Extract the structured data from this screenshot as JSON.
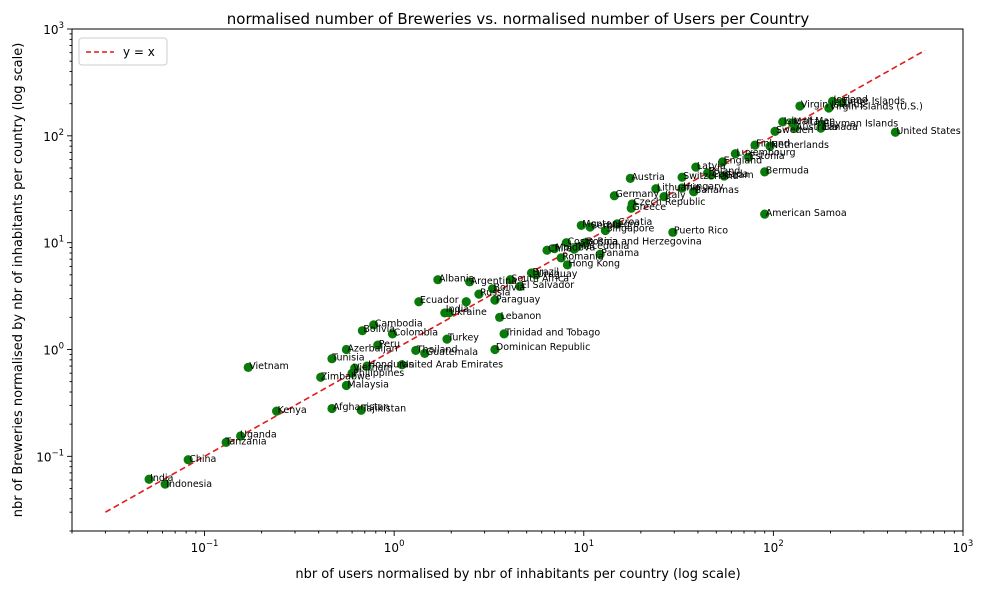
{
  "chart_data": {
    "type": "scatter",
    "title": "normalised number of Breweries vs. normalised number of Users per Country",
    "xlabel": "nbr of users normalised by nbr of inhabitants per country (log scale)",
    "ylabel": "nbr of Breweries normalised by nbr of inhabitants per country (log scale)",
    "x_scale": "log",
    "y_scale": "log",
    "xlim": [
      0.02,
      1000
    ],
    "ylim": [
      0.02,
      1000
    ],
    "x_ticks": [
      {
        "value": 0.1,
        "base": "10",
        "exp": "−1"
      },
      {
        "value": 1,
        "base": "10",
        "exp": "0"
      },
      {
        "value": 10,
        "base": "10",
        "exp": "1"
      },
      {
        "value": 100,
        "base": "10",
        "exp": "2"
      },
      {
        "value": 1000,
        "base": "10",
        "exp": "3"
      }
    ],
    "y_ticks": [
      {
        "value": 0.1,
        "base": "10",
        "exp": "−1"
      },
      {
        "value": 1,
        "base": "10",
        "exp": "0"
      },
      {
        "value": 10,
        "base": "10",
        "exp": "1"
      },
      {
        "value": 100,
        "base": "10",
        "exp": "2"
      },
      {
        "value": 1000,
        "base": "10",
        "exp": "3"
      }
    ],
    "grid": false,
    "legend": {
      "placement": "top-left",
      "entries": [
        "y = x"
      ]
    },
    "reference_line": {
      "name": "y = x",
      "x": [
        0.03,
        630
      ],
      "y": [
        0.03,
        630
      ],
      "color": "#e01b1b",
      "style": "dashed"
    },
    "point_color": "#0a7a0a",
    "points": [
      {
        "label": "India",
        "x": 0.051,
        "y": 0.061
      },
      {
        "label": "Indonesia",
        "x": 0.062,
        "y": 0.055
      },
      {
        "label": "China",
        "x": 0.082,
        "y": 0.093
      },
      {
        "label": "Tanzania",
        "x": 0.13,
        "y": 0.135
      },
      {
        "label": "Uganda",
        "x": 0.155,
        "y": 0.155
      },
      {
        "label": "Vietnam",
        "x": 0.17,
        "y": 0.68
      },
      {
        "label": "Kenya",
        "x": 0.24,
        "y": 0.265
      },
      {
        "label": "Zimbabwe",
        "x": 0.41,
        "y": 0.55
      },
      {
        "label": "Tunisia",
        "x": 0.47,
        "y": 0.82
      },
      {
        "label": "Afghanistan",
        "x": 0.47,
        "y": 0.28
      },
      {
        "label": "Malaysia",
        "x": 0.56,
        "y": 0.46
      },
      {
        "label": "Azerbaijan",
        "x": 0.56,
        "y": 1.0
      },
      {
        "label": "Philippines",
        "x": 0.6,
        "y": 0.6
      },
      {
        "label": "Vietnam",
        "x": 0.62,
        "y": 0.67
      },
      {
        "label": "Tajikistan",
        "x": 0.67,
        "y": 0.27
      },
      {
        "label": "Bolivia",
        "x": 0.68,
        "y": 1.5
      },
      {
        "label": "Honduras",
        "x": 0.72,
        "y": 0.7
      },
      {
        "label": "Cambodia",
        "x": 0.78,
        "y": 1.7
      },
      {
        "label": "Peru",
        "x": 0.82,
        "y": 1.1
      },
      {
        "label": "Colombia",
        "x": 0.98,
        "y": 1.4
      },
      {
        "label": "United Arab Emirates",
        "x": 1.1,
        "y": 0.72
      },
      {
        "label": "Thailand",
        "x": 1.3,
        "y": 0.98
      },
      {
        "label": "Ecuador",
        "x": 1.35,
        "y": 2.8
      },
      {
        "label": "Guatemala",
        "x": 1.45,
        "y": 0.92
      },
      {
        "label": "Albania",
        "x": 1.7,
        "y": 4.5
      },
      {
        "label": "India",
        "x": 1.85,
        "y": 2.2
      },
      {
        "label": "Ukraine",
        "x": 1.95,
        "y": 2.2
      },
      {
        "label": "Turkey",
        "x": 1.9,
        "y": 1.25
      },
      {
        "label": "El Salvador",
        "x": 2.4,
        "y": 2.8
      },
      {
        "label": "Argentina",
        "x": 2.5,
        "y": 4.3
      },
      {
        "label": "Russia",
        "x": 2.8,
        "y": 3.3
      },
      {
        "label": "Bolivia",
        "x": 3.3,
        "y": 3.7
      },
      {
        "label": "Paraguay",
        "x": 3.4,
        "y": 2.9
      },
      {
        "label": "Dominican Republic",
        "x": 3.4,
        "y": 1.0
      },
      {
        "label": "Lebanon",
        "x": 3.6,
        "y": 2.0
      },
      {
        "label": "Trinidad and Tobago",
        "x": 3.8,
        "y": 1.4
      },
      {
        "label": "South Africa",
        "x": 4.1,
        "y": 4.5
      },
      {
        "label": "El Salvador",
        "x": 4.6,
        "y": 3.9
      },
      {
        "label": "Brazil",
        "x": 5.3,
        "y": 5.2
      },
      {
        "label": "Uruguay",
        "x": 5.6,
        "y": 5.0
      },
      {
        "label": "Chile",
        "x": 6.4,
        "y": 8.5
      },
      {
        "label": "Romania",
        "x": 7.6,
        "y": 7.2
      },
      {
        "label": "Moldova",
        "x": 7.0,
        "y": 8.8
      },
      {
        "label": "Costa Rica",
        "x": 8.1,
        "y": 10.0
      },
      {
        "label": "Hong Kong",
        "x": 8.2,
        "y": 6.2
      },
      {
        "label": "Mexico",
        "x": 8.9,
        "y": 8.7
      },
      {
        "label": "Macedonia",
        "x": 9.2,
        "y": 9.1
      },
      {
        "label": "Bosnia and Herzegovina",
        "x": 10.2,
        "y": 10.0
      },
      {
        "label": "Montenegro",
        "x": 9.7,
        "y": 14.5
      },
      {
        "label": "Serbia",
        "x": 10.8,
        "y": 14.0
      },
      {
        "label": "Panama",
        "x": 12.2,
        "y": 7.8
      },
      {
        "label": "Singapore",
        "x": 13.0,
        "y": 13.0
      },
      {
        "label": "Croatia",
        "x": 15.0,
        "y": 15.0
      },
      {
        "label": "Greece",
        "x": 17.8,
        "y": 21.0
      },
      {
        "label": "Czech Republic",
        "x": 18.0,
        "y": 23.0
      },
      {
        "label": "Puerto Rico",
        "x": 29.5,
        "y": 12.5
      },
      {
        "label": "Germany",
        "x": 14.5,
        "y": 27.5
      },
      {
        "label": "Austria",
        "x": 17.6,
        "y": 40.0
      },
      {
        "label": "Lithuania",
        "x": 24.0,
        "y": 32.0
      },
      {
        "label": "Italy",
        "x": 26.5,
        "y": 27.0
      },
      {
        "label": "Bahamas",
        "x": 38.0,
        "y": 30.0
      },
      {
        "label": "Hungary",
        "x": 33.0,
        "y": 32.5
      },
      {
        "label": "Switzerland",
        "x": 33.0,
        "y": 41.0
      },
      {
        "label": "Latvia",
        "x": 39.0,
        "y": 51.0
      },
      {
        "label": "Poland",
        "x": 45.0,
        "y": 45.0
      },
      {
        "label": "Canada",
        "x": 47.0,
        "y": 43.0
      },
      {
        "label": "Guam",
        "x": 55.0,
        "y": 42.0
      },
      {
        "label": "Bermuda",
        "x": 90.0,
        "y": 46.0
      },
      {
        "label": "American Samoa",
        "x": 90.0,
        "y": 18.5
      },
      {
        "label": "England",
        "x": 54.0,
        "y": 57.0
      },
      {
        "label": "Luxembourg",
        "x": 63.0,
        "y": 68.0
      },
      {
        "label": "Estonia",
        "x": 74.0,
        "y": 63.0
      },
      {
        "label": "Finland",
        "x": 80.0,
        "y": 82.0
      },
      {
        "label": "Netherlands",
        "x": 96.0,
        "y": 80.0
      },
      {
        "label": "Sweden",
        "x": 102.0,
        "y": 110.0
      },
      {
        "label": "Isle of Man",
        "x": 112.0,
        "y": 135.0
      },
      {
        "label": "Malta",
        "x": 126.0,
        "y": 132.0
      },
      {
        "label": "Australia",
        "x": 130.0,
        "y": 118.0
      },
      {
        "label": "Canada",
        "x": 178.0,
        "y": 118.0
      },
      {
        "label": "Virgin Islands",
        "x": 138.0,
        "y": 190.0
      },
      {
        "label": "Cayman Islands",
        "x": 180.0,
        "y": 128.0
      },
      {
        "label": "Iceland",
        "x": 205.0,
        "y": 210.0
      },
      {
        "label": "Faroe Islands",
        "x": 230.0,
        "y": 205.0
      },
      {
        "label": "Virgin Islands (U.S.)",
        "x": 196.0,
        "y": 182.0
      },
      {
        "label": "United States",
        "x": 440.0,
        "y": 108.0
      }
    ],
    "printed_labels": [
      {
        "text": "India",
        "x": 0.051,
        "y": 0.063
      },
      {
        "text": "Indonesia",
        "x": 0.062,
        "y": 0.055
      },
      {
        "text": "China",
        "x": 0.082,
        "y": 0.094
      },
      {
        "text": "Tanzania",
        "x": 0.127,
        "y": 0.138
      },
      {
        "text": "Uganda",
        "x": 0.152,
        "y": 0.16
      },
      {
        "text": "Vietnam",
        "x": 0.17,
        "y": 0.7
      },
      {
        "text": "Kenya",
        "x": 0.24,
        "y": 0.27
      },
      {
        "text": "Zimbabwe",
        "x": 0.405,
        "y": 0.56
      },
      {
        "text": "Tunisia",
        "x": 0.465,
        "y": 0.84
      },
      {
        "text": "Afghanistan",
        "x": 0.47,
        "y": 0.29
      },
      {
        "text": "Tajikistan",
        "x": 0.67,
        "y": 0.28
      },
      {
        "text": "Malaysia",
        "x": 0.56,
        "y": 0.47
      },
      {
        "text": "Philippines",
        "x": 0.6,
        "y": 0.6
      },
      {
        "text": "Vietnam",
        "x": 0.6,
        "y": 0.68
      },
      {
        "text": "Honduras",
        "x": 0.72,
        "y": 0.72
      },
      {
        "text": "United Arab Emirates",
        "x": 1.08,
        "y": 0.72
      },
      {
        "text": "Azerbaijan",
        "x": 0.56,
        "y": 1.02
      },
      {
        "text": "Peru",
        "x": 0.82,
        "y": 1.12
      },
      {
        "text": "Bolivia",
        "x": 0.68,
        "y": 1.55
      },
      {
        "text": "Cambodia",
        "x": 0.78,
        "y": 1.75
      },
      {
        "text": "Colombia",
        "x": 0.98,
        "y": 1.45
      },
      {
        "text": "Thailand",
        "x": 1.3,
        "y": 1.0
      },
      {
        "text": "Guatemala",
        "x": 1.45,
        "y": 0.95
      },
      {
        "text": "Ecuador",
        "x": 1.35,
        "y": 2.9
      },
      {
        "text": "India",
        "x": 1.85,
        "y": 2.4
      },
      {
        "text": "Ukraine",
        "x": 1.95,
        "y": 2.25
      },
      {
        "text": "Turkey",
        "x": 1.9,
        "y": 1.3
      },
      {
        "text": "Albania",
        "x": 1.7,
        "y": 4.6
      },
      {
        "text": "Argentina",
        "x": 2.5,
        "y": 4.4
      },
      {
        "text": "Russia",
        "x": 2.8,
        "y": 3.4
      },
      {
        "text": "Bolivia",
        "x": 3.3,
        "y": 3.8
      },
      {
        "text": "Paraguay",
        "x": 3.4,
        "y": 2.95
      },
      {
        "text": "El Salvador",
        "x": 4.6,
        "y": 4.0
      },
      {
        "text": "South Africa",
        "x": 4.1,
        "y": 4.6
      },
      {
        "text": "Lebanon",
        "x": 3.6,
        "y": 2.05
      },
      {
        "text": "Trinidad and Tobago",
        "x": 3.8,
        "y": 1.45
      },
      {
        "text": "Dominican Republic",
        "x": 3.4,
        "y": 1.05
      },
      {
        "text": "Brazil",
        "x": 5.3,
        "y": 5.3
      },
      {
        "text": "Uruguay",
        "x": 5.6,
        "y": 5.1
      },
      {
        "text": "Chile",
        "x": 6.4,
        "y": 8.8
      },
      {
        "text": "Moldova",
        "x": 7.0,
        "y": 9.0
      },
      {
        "text": "Macedonia",
        "x": 9.2,
        "y": 9.3
      },
      {
        "text": "Costa Rica",
        "x": 8.1,
        "y": 10.3
      },
      {
        "text": "Bosnia and Herzegovina",
        "x": 10.2,
        "y": 10.3
      },
      {
        "text": "Romania",
        "x": 7.6,
        "y": 7.4
      },
      {
        "text": "Hong Kong",
        "x": 8.2,
        "y": 6.4
      },
      {
        "text": "Panama",
        "x": 12.2,
        "y": 8.0
      },
      {
        "text": "Montenegro",
        "x": 9.7,
        "y": 15.0
      },
      {
        "text": "Serbia",
        "x": 10.8,
        "y": 14.4
      },
      {
        "text": "Croatia",
        "x": 15.0,
        "y": 15.6
      },
      {
        "text": "Singapore",
        "x": 13.0,
        "y": 13.5
      },
      {
        "text": "Puerto Rico",
        "x": 29.5,
        "y": 13.0
      },
      {
        "text": "Greece",
        "x": 17.8,
        "y": 21.5
      },
      {
        "text": "Czech Republic",
        "x": 18.0,
        "y": 24.0
      },
      {
        "text": "Germany",
        "x": 14.5,
        "y": 28.5
      },
      {
        "text": "Austria",
        "x": 17.6,
        "y": 41.0
      },
      {
        "text": "Lithuania",
        "x": 24.0,
        "y": 33.0
      },
      {
        "text": "Italy",
        "x": 26.5,
        "y": 28.0
      },
      {
        "text": "Hungary",
        "x": 33.0,
        "y": 33.5
      },
      {
        "text": "Bahamas",
        "x": 38.0,
        "y": 31.0
      },
      {
        "text": "Switzerland",
        "x": 33.0,
        "y": 42.0
      },
      {
        "text": "Latvia",
        "x": 39.0,
        "y": 52.0
      },
      {
        "text": "Poland",
        "x": 45.0,
        "y": 47.0
      },
      {
        "text": "Canada",
        "x": 47.0,
        "y": 44.0
      },
      {
        "text": "Guam",
        "x": 55.0,
        "y": 43.0
      },
      {
        "text": "Bermuda",
        "x": 90.0,
        "y": 47.5
      },
      {
        "text": "American Samoa",
        "x": 90.0,
        "y": 19.0
      },
      {
        "text": "England",
        "x": 54.0,
        "y": 59.0
      },
      {
        "text": "Luxembourg",
        "x": 63.0,
        "y": 70.0
      },
      {
        "text": "Estonia",
        "x": 74.0,
        "y": 65.0
      },
      {
        "text": "Finland",
        "x": 80.0,
        "y": 85.0
      },
      {
        "text": "Netherlands",
        "x": 96.0,
        "y": 82.0
      },
      {
        "text": "Sweden",
        "x": 102.0,
        "y": 113.0
      },
      {
        "text": "Isle of Man",
        "x": 112.0,
        "y": 138.0
      },
      {
        "text": "Malta",
        "x": 126.0,
        "y": 136.0
      },
      {
        "text": "Australia",
        "x": 130.0,
        "y": 121.0
      },
      {
        "text": "Canada",
        "x": 178.0,
        "y": 121.0
      },
      {
        "text": "Cayman Islands",
        "x": 180.0,
        "y": 131.0
      },
      {
        "text": "Virgin Islands",
        "x": 138.0,
        "y": 196.0
      },
      {
        "text": "Virgin Islands (U.S.)",
        "x": 196.0,
        "y": 188.0
      },
      {
        "text": "Iceland",
        "x": 205.0,
        "y": 218.0
      },
      {
        "text": "Faroe Islands",
        "x": 230.0,
        "y": 212.0
      },
      {
        "text": "United States",
        "x": 440.0,
        "y": 111.0
      }
    ]
  }
}
